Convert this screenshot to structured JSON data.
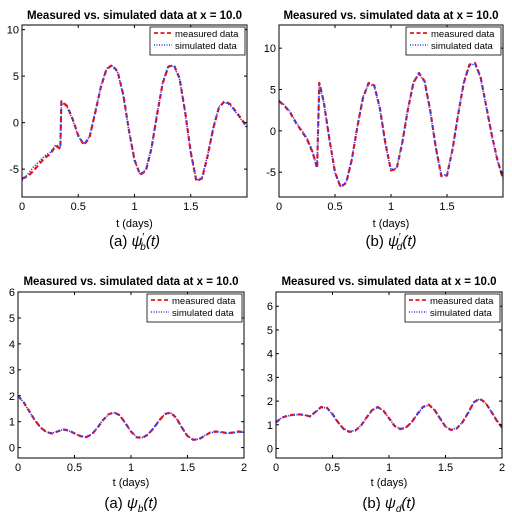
{
  "colors": {
    "measured": "#e8141b",
    "simulated": "#1f3cff",
    "axis": "#000000",
    "background": "#ffffff"
  },
  "chart_data": [
    {
      "id": "a-top",
      "type": "line",
      "title": "Measured vs. simulated data at x = 10.0",
      "xlabel": "t (days)",
      "ylabel": "",
      "xlim": [
        0,
        2
      ],
      "ylim": [
        -8,
        10.5
      ],
      "xticks": [
        0,
        0.5,
        1,
        1.5
      ],
      "xtick_labels": [
        "0",
        "0.5",
        "1",
        "1.5"
      ],
      "yticks": [
        -5,
        0,
        5,
        10
      ],
      "ytick_labels": [
        "-5",
        "0",
        "5",
        "10"
      ],
      "grid": false,
      "legend_position": "top-right",
      "caption_label": "(a)",
      "caption_symbol": "ψ",
      "caption_sub": "b",
      "caption_prime": true,
      "caption_arg": "(t)",
      "series": [
        {
          "name": "measured data",
          "style": "dashed",
          "x": [
            0,
            0.05,
            0.1,
            0.15,
            0.2,
            0.25,
            0.3,
            0.34,
            0.35,
            0.4,
            0.45,
            0.5,
            0.55,
            0.6,
            0.65,
            0.7,
            0.75,
            0.8,
            0.85,
            0.9,
            0.95,
            1.0,
            1.05,
            1.1,
            1.15,
            1.2,
            1.25,
            1.3,
            1.35,
            1.4,
            1.45,
            1.5,
            1.55,
            1.6,
            1.65,
            1.7,
            1.75,
            1.8,
            1.85,
            1.9,
            1.95,
            2.0
          ],
          "y": [
            -6.0,
            -5.8,
            -5.2,
            -4.5,
            -3.8,
            -3.4,
            -2.5,
            -2.8,
            2.3,
            1.8,
            0.4,
            -1.4,
            -2.4,
            -1.6,
            1.0,
            3.8,
            5.7,
            6.2,
            5.5,
            3.0,
            -0.8,
            -4.0,
            -5.6,
            -5.2,
            -2.8,
            0.8,
            4.2,
            6.0,
            6.2,
            4.8,
            1.2,
            -3.2,
            -6.3,
            -6.0,
            -3.6,
            -0.6,
            1.6,
            2.3,
            2.0,
            1.2,
            0.4,
            -0.5
          ]
        },
        {
          "name": "simulated data",
          "style": "dotted",
          "x": [
            0,
            0.05,
            0.1,
            0.15,
            0.2,
            0.25,
            0.3,
            0.34,
            0.35,
            0.4,
            0.45,
            0.5,
            0.55,
            0.6,
            0.65,
            0.7,
            0.75,
            0.8,
            0.85,
            0.9,
            0.95,
            1.0,
            1.05,
            1.1,
            1.15,
            1.2,
            1.25,
            1.3,
            1.35,
            1.4,
            1.45,
            1.5,
            1.55,
            1.6,
            1.65,
            1.7,
            1.75,
            1.8,
            1.85,
            1.9,
            1.95,
            2.0
          ],
          "y": [
            -6.2,
            -5.6,
            -4.8,
            -4.2,
            -3.6,
            -3.2,
            -2.4,
            -2.6,
            2.2,
            1.7,
            0.3,
            -1.5,
            -2.3,
            -1.5,
            1.1,
            3.9,
            5.8,
            6.1,
            5.4,
            2.9,
            -0.9,
            -4.1,
            -5.5,
            -5.1,
            -2.7,
            0.9,
            4.3,
            6.1,
            6.1,
            4.7,
            1.1,
            -3.3,
            -6.2,
            -5.9,
            -3.5,
            -0.5,
            1.7,
            2.2,
            1.9,
            1.1,
            0.3,
            -0.6
          ]
        }
      ]
    },
    {
      "id": "b-top",
      "type": "line",
      "title": "Measured vs. simulated data at x = 10.0",
      "xlabel": "t (days)",
      "ylabel": "",
      "xlim": [
        0,
        2
      ],
      "ylim": [
        -8,
        12.8
      ],
      "xticks": [
        0,
        0.5,
        1,
        1.5
      ],
      "xtick_labels": [
        "0",
        "0.5",
        "1",
        "1.5"
      ],
      "yticks": [
        -5,
        0,
        5,
        10
      ],
      "ytick_labels": [
        "-5",
        "0",
        "5",
        "10"
      ],
      "grid": false,
      "legend_position": "top-right",
      "caption_label": "(b)",
      "caption_symbol": "ψ",
      "caption_sub": "d",
      "caption_prime": true,
      "caption_arg": "(t)",
      "series": [
        {
          "name": "measured data",
          "style": "dashed",
          "x": [
            0,
            0.05,
            0.1,
            0.15,
            0.2,
            0.25,
            0.3,
            0.34,
            0.36,
            0.4,
            0.45,
            0.5,
            0.55,
            0.6,
            0.65,
            0.7,
            0.75,
            0.8,
            0.85,
            0.9,
            0.95,
            1.0,
            1.05,
            1.1,
            1.15,
            1.2,
            1.25,
            1.3,
            1.35,
            1.4,
            1.45,
            1.5,
            1.55,
            1.6,
            1.65,
            1.7,
            1.75,
            1.8,
            1.85,
            1.9,
            1.95,
            2.0
          ],
          "y": [
            3.6,
            3.0,
            2.2,
            1.0,
            0.0,
            -1.0,
            -2.6,
            -4.5,
            5.8,
            3.5,
            -1.0,
            -5.0,
            -6.8,
            -6.3,
            -3.5,
            0.5,
            4.0,
            5.8,
            5.5,
            2.8,
            -1.5,
            -4.8,
            -4.6,
            -1.5,
            2.5,
            5.8,
            7.0,
            6.0,
            2.5,
            -2.0,
            -5.5,
            -5.4,
            -2.2,
            2.0,
            5.8,
            8.0,
            8.2,
            6.5,
            3.0,
            -0.5,
            -3.5,
            -5.8
          ]
        },
        {
          "name": "simulated data",
          "style": "dotted",
          "x": [
            0,
            0.05,
            0.1,
            0.15,
            0.2,
            0.25,
            0.3,
            0.34,
            0.36,
            0.4,
            0.45,
            0.5,
            0.55,
            0.6,
            0.65,
            0.7,
            0.75,
            0.8,
            0.85,
            0.9,
            0.95,
            1.0,
            1.05,
            1.1,
            1.15,
            1.2,
            1.25,
            1.3,
            1.35,
            1.4,
            1.45,
            1.5,
            1.55,
            1.6,
            1.65,
            1.7,
            1.75,
            1.8,
            1.85,
            1.9,
            1.95,
            2.0
          ],
          "y": [
            3.7,
            3.1,
            2.3,
            1.1,
            0.1,
            -0.9,
            -2.5,
            -4.4,
            5.7,
            3.4,
            -1.1,
            -5.1,
            -6.7,
            -6.2,
            -3.4,
            0.6,
            4.1,
            5.7,
            5.4,
            2.7,
            -1.6,
            -4.7,
            -4.5,
            -1.4,
            2.6,
            5.9,
            6.9,
            5.9,
            2.4,
            -2.1,
            -5.4,
            -5.3,
            -2.1,
            2.1,
            5.9,
            7.9,
            8.1,
            6.4,
            2.9,
            -0.6,
            -3.6,
            -5.7
          ]
        }
      ]
    },
    {
      "id": "a-bottom",
      "type": "line",
      "title": "Measured vs. simulated data at x = 10.0",
      "xlabel": "t (days)",
      "ylabel": "",
      "xlim": [
        0,
        2
      ],
      "ylim": [
        -0.4,
        6
      ],
      "xticks": [
        0,
        0.5,
        1,
        1.5,
        2
      ],
      "xtick_labels": [
        "0",
        "0.5",
        "1",
        "1.5",
        "2"
      ],
      "yticks": [
        0,
        1,
        2,
        3,
        4,
        5,
        6
      ],
      "ytick_labels": [
        "0",
        "1",
        "2",
        "3",
        "4",
        "5",
        "6"
      ],
      "grid": false,
      "legend_position": "top-right",
      "caption_label": "(a)",
      "caption_symbol": "ψ",
      "caption_sub": "b",
      "caption_prime": false,
      "caption_arg": "(t)",
      "series": [
        {
          "name": "measured data",
          "style": "dashed",
          "x": [
            0,
            0.05,
            0.1,
            0.15,
            0.2,
            0.25,
            0.3,
            0.35,
            0.4,
            0.45,
            0.5,
            0.55,
            0.6,
            0.65,
            0.7,
            0.75,
            0.8,
            0.85,
            0.9,
            0.95,
            1.0,
            1.05,
            1.1,
            1.15,
            1.2,
            1.25,
            1.3,
            1.35,
            1.4,
            1.45,
            1.5,
            1.55,
            1.6,
            1.65,
            1.7,
            1.75,
            1.8,
            1.85,
            1.9,
            1.95,
            2.0
          ],
          "y": [
            2.0,
            1.75,
            1.4,
            1.05,
            0.78,
            0.6,
            0.55,
            0.62,
            0.7,
            0.66,
            0.55,
            0.45,
            0.4,
            0.5,
            0.75,
            1.05,
            1.28,
            1.36,
            1.25,
            0.95,
            0.62,
            0.4,
            0.38,
            0.5,
            0.75,
            1.05,
            1.3,
            1.35,
            1.15,
            0.78,
            0.45,
            0.3,
            0.32,
            0.45,
            0.58,
            0.62,
            0.6,
            0.56,
            0.58,
            0.62,
            0.6
          ]
        },
        {
          "name": "simulated data",
          "style": "dotted",
          "x": [
            0,
            0.05,
            0.1,
            0.15,
            0.2,
            0.25,
            0.3,
            0.35,
            0.4,
            0.45,
            0.5,
            0.55,
            0.6,
            0.65,
            0.7,
            0.75,
            0.8,
            0.85,
            0.9,
            0.95,
            1.0,
            1.05,
            1.1,
            1.15,
            1.2,
            1.25,
            1.3,
            1.35,
            1.4,
            1.45,
            1.5,
            1.55,
            1.6,
            1.65,
            1.7,
            1.75,
            1.8,
            1.85,
            1.9,
            1.95,
            2.0
          ],
          "y": [
            2.0,
            1.74,
            1.39,
            1.04,
            0.77,
            0.6,
            0.56,
            0.63,
            0.7,
            0.65,
            0.54,
            0.44,
            0.41,
            0.51,
            0.76,
            1.06,
            1.27,
            1.35,
            1.24,
            0.94,
            0.61,
            0.41,
            0.39,
            0.51,
            0.76,
            1.06,
            1.29,
            1.34,
            1.14,
            0.77,
            0.44,
            0.31,
            0.33,
            0.46,
            0.57,
            0.61,
            0.59,
            0.55,
            0.57,
            0.61,
            0.59
          ]
        }
      ]
    },
    {
      "id": "b-bottom",
      "type": "line",
      "title": "Measured vs. simulated data at x = 10.0",
      "xlabel": "t (days)",
      "ylabel": "",
      "xlim": [
        0,
        2
      ],
      "ylim": [
        -0.4,
        6.6
      ],
      "xticks": [
        0,
        0.5,
        1,
        1.5,
        2
      ],
      "xtick_labels": [
        "0",
        "0.5",
        "1",
        "1.5",
        "2"
      ],
      "yticks": [
        0,
        1,
        2,
        3,
        4,
        5,
        6
      ],
      "ytick_labels": [
        "0",
        "1",
        "2",
        "3",
        "4",
        "5",
        "6"
      ],
      "grid": false,
      "legend_position": "top-right",
      "caption_label": "(b)",
      "caption_symbol": "ψ",
      "caption_sub": "d",
      "caption_prime": false,
      "caption_arg": "(t)",
      "series": [
        {
          "name": "measured data",
          "style": "dashed",
          "x": [
            0,
            0.05,
            0.1,
            0.15,
            0.2,
            0.25,
            0.3,
            0.35,
            0.4,
            0.45,
            0.5,
            0.55,
            0.6,
            0.65,
            0.7,
            0.75,
            0.8,
            0.85,
            0.9,
            0.95,
            1.0,
            1.05,
            1.1,
            1.15,
            1.2,
            1.25,
            1.3,
            1.35,
            1.4,
            1.45,
            1.5,
            1.55,
            1.6,
            1.65,
            1.7,
            1.75,
            1.8,
            1.85,
            1.9,
            1.95,
            2.0
          ],
          "y": [
            1.1,
            1.3,
            1.38,
            1.42,
            1.44,
            1.42,
            1.35,
            1.55,
            1.75,
            1.72,
            1.45,
            1.1,
            0.82,
            0.7,
            0.75,
            0.95,
            1.3,
            1.62,
            1.75,
            1.6,
            1.28,
            0.95,
            0.82,
            0.88,
            1.1,
            1.45,
            1.75,
            1.85,
            1.65,
            1.28,
            0.92,
            0.78,
            0.85,
            1.1,
            1.5,
            1.95,
            2.1,
            1.95,
            1.6,
            1.2,
            0.88
          ]
        },
        {
          "name": "simulated data",
          "style": "dotted",
          "x": [
            0,
            0.05,
            0.1,
            0.15,
            0.2,
            0.25,
            0.3,
            0.35,
            0.4,
            0.45,
            0.5,
            0.55,
            0.6,
            0.65,
            0.7,
            0.75,
            0.8,
            0.85,
            0.9,
            0.95,
            1.0,
            1.05,
            1.1,
            1.15,
            1.2,
            1.25,
            1.3,
            1.35,
            1.4,
            1.45,
            1.5,
            1.55,
            1.6,
            1.65,
            1.7,
            1.75,
            1.8,
            1.85,
            1.9,
            1.95,
            2.0
          ],
          "y": [
            1.1,
            1.29,
            1.37,
            1.41,
            1.43,
            1.41,
            1.36,
            1.54,
            1.74,
            1.71,
            1.44,
            1.09,
            0.83,
            0.71,
            0.76,
            0.96,
            1.29,
            1.61,
            1.74,
            1.59,
            1.27,
            0.96,
            0.83,
            0.89,
            1.11,
            1.44,
            1.74,
            1.84,
            1.64,
            1.27,
            0.93,
            0.79,
            0.86,
            1.11,
            1.49,
            1.94,
            2.09,
            1.94,
            1.59,
            1.21,
            0.89
          ]
        }
      ]
    }
  ]
}
